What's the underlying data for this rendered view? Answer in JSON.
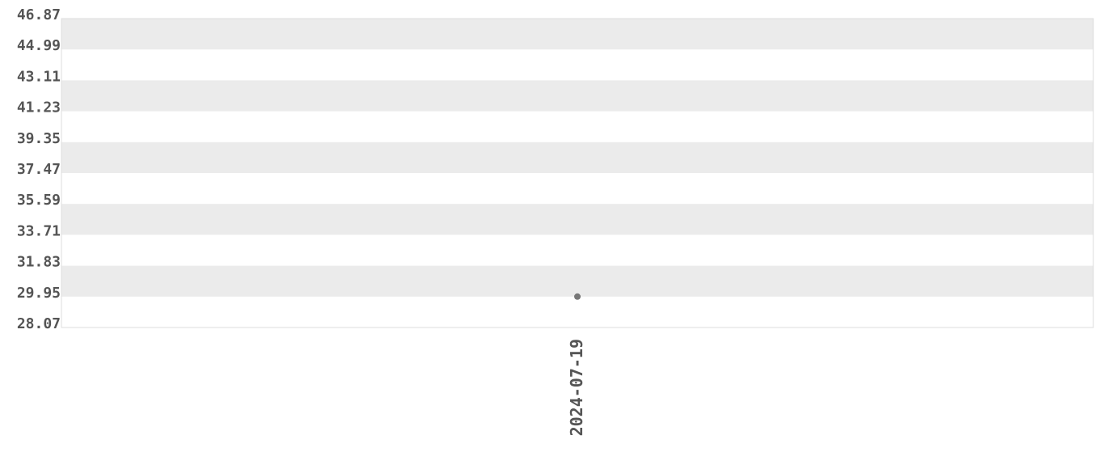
{
  "chart_data": {
    "type": "scatter",
    "title": "",
    "xlabel": "",
    "ylabel": "",
    "x_categories": [
      "2024-07-19"
    ],
    "points": [
      {
        "x": "2024-07-19",
        "y": 29.95
      }
    ],
    "ylim": [
      28.07,
      46.87
    ],
    "y_ticks": [
      "28.07",
      "29.95",
      "31.83",
      "33.71",
      "35.59",
      "37.47",
      "39.35",
      "41.23",
      "43.11",
      "44.99",
      "46.87"
    ],
    "grid": "alternating horizontal bands",
    "legend": "none",
    "colors": {
      "band": "#ebebeb",
      "point": "#777777",
      "text": "#555555",
      "border": "#dddddd"
    }
  }
}
